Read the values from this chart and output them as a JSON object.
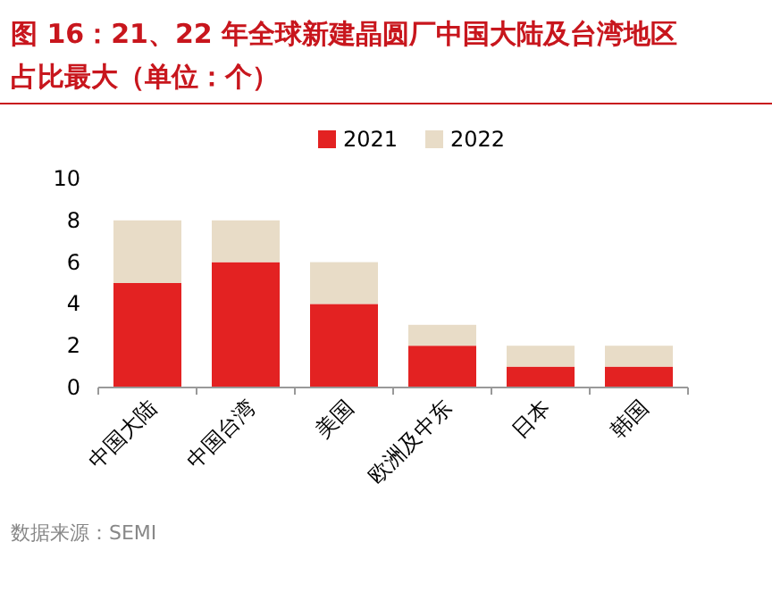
{
  "chart_data": {
    "type": "bar",
    "stacked": true,
    "title": "图 16：21、22 年全球新建晶圆厂中国大陆及台湾地区占比最大（单位：个）",
    "categories": [
      "中国大陆",
      "中国台湾",
      "美国",
      "欧洲及中东",
      "日本",
      "韩国"
    ],
    "series": [
      {
        "name": "2021",
        "color": "#e32222",
        "values": [
          5,
          6,
          4,
          2,
          1,
          1
        ]
      },
      {
        "name": "2022",
        "color": "#e8dcc7",
        "values": [
          3,
          2,
          2,
          1,
          1,
          1
        ]
      }
    ],
    "ylim": [
      0,
      10
    ],
    "yticks": [
      0,
      2,
      4,
      6,
      8,
      10
    ],
    "legend": "top",
    "annotations": [
      "数据来源：SEMI"
    ]
  }
}
